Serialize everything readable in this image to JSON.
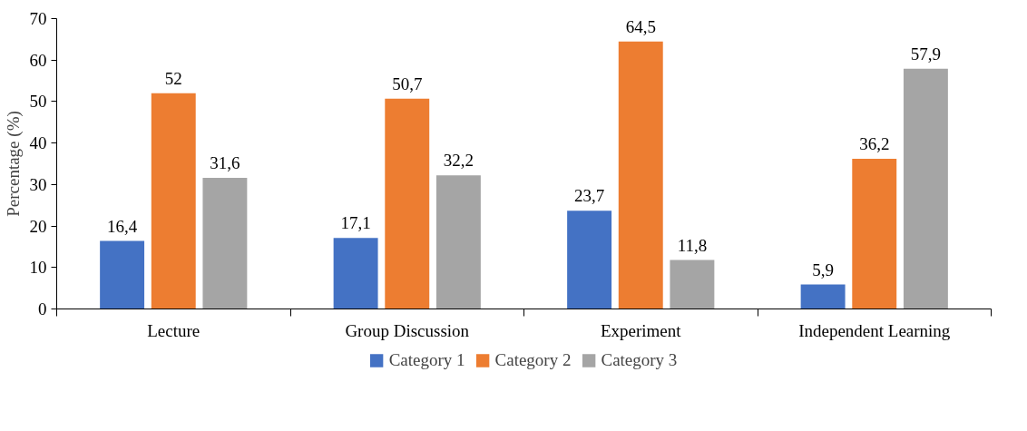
{
  "chart_data": {
    "type": "bar",
    "ylabel": "Percentage (%)",
    "categories": [
      "Lecture",
      "Group Discussion",
      "Experiment",
      "Independent Learning"
    ],
    "series": [
      {
        "name": "Category 1",
        "color": "#4472c4",
        "values": [
          16.4,
          17.1,
          23.7,
          5.9
        ],
        "value_labels": [
          "16,4",
          "17,1",
          "23,7",
          "5,9"
        ]
      },
      {
        "name": "Category 2",
        "color": "#ed7d31",
        "values": [
          52,
          50.7,
          64.5,
          36.2
        ],
        "value_labels": [
          "52",
          "50,7",
          "64,5",
          "36,2"
        ]
      },
      {
        "name": "Category 3",
        "color": "#a5a5a5",
        "values": [
          31.6,
          32.2,
          11.8,
          57.9
        ],
        "value_labels": [
          "31,6",
          "32,2",
          "11,8",
          "57,9"
        ]
      }
    ],
    "ylim": [
      0,
      70
    ],
    "yticks": [
      0,
      10,
      20,
      30,
      40,
      50,
      60,
      70
    ],
    "grid": false,
    "legend": "bottom"
  }
}
